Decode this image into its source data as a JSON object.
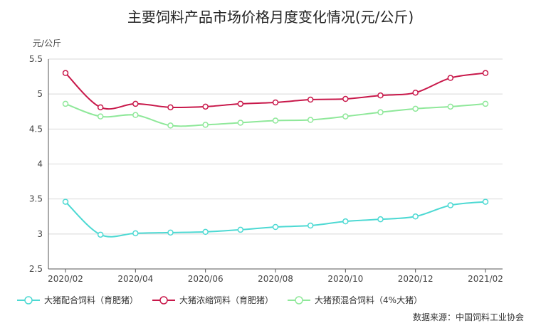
{
  "chart_data": {
    "type": "line",
    "title": "主要饲料产品市场价格月度变化情况(元/公斤)",
    "ylabel": "元/公斤",
    "xlabel": "",
    "ylim": [
      2.5,
      5.5
    ],
    "yticks": [
      "2.5",
      "3",
      "3.5",
      "4",
      "4.5",
      "5",
      "5.5"
    ],
    "x": [
      "2020/02",
      "2020/03",
      "2020/04",
      "2020/05",
      "2020/06",
      "2020/07",
      "2020/08",
      "2020/09",
      "2020/10",
      "2020/11",
      "2020/12",
      "2021/01",
      "2021/02"
    ],
    "xtick_labels": [
      "2020/02",
      "2020/04",
      "2020/06",
      "2020/08",
      "2020/10",
      "2020/12",
      "2021/02"
    ],
    "grid": true,
    "legend_position": "bottom-left",
    "series": [
      {
        "name": "大猪配合饲料（育肥猪）",
        "color": "#4dd9d3",
        "values": [
          3.46,
          2.99,
          3.01,
          3.02,
          3.03,
          3.06,
          3.1,
          3.12,
          3.18,
          3.21,
          3.25,
          3.41,
          3.46
        ]
      },
      {
        "name": "大猪浓缩饲料（育肥猪）",
        "color": "#c8184a",
        "values": [
          5.3,
          4.81,
          4.86,
          4.81,
          4.82,
          4.86,
          4.88,
          4.92,
          4.93,
          4.98,
          5.02,
          5.23,
          5.3
        ]
      },
      {
        "name": "大猪预混合饲料（4%大猪）",
        "color": "#8fe89a",
        "values": [
          4.86,
          4.68,
          4.7,
          4.55,
          4.56,
          4.59,
          4.62,
          4.63,
          4.68,
          4.74,
          4.79,
          4.82,
          4.86
        ]
      }
    ],
    "source": "数据来源：中国饲料工业协会"
  }
}
